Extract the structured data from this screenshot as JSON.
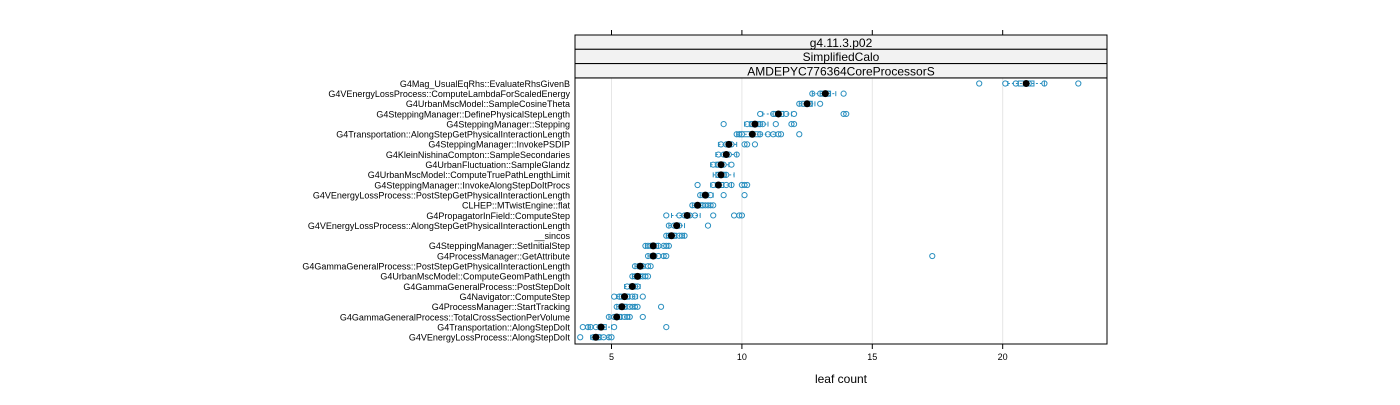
{
  "chart_data": {
    "type": "scatter",
    "strips": [
      "g4.11.3.p02",
      "SimplifiedCalo",
      "AMDEPYC776364CoreProcessorS"
    ],
    "xlabel": "leaf count",
    "ylabel": "",
    "xlim": [
      3.6,
      24.0
    ],
    "xticks": [
      5,
      10,
      15,
      20
    ],
    "grid": true,
    "colors": {
      "point": "#2a8fbf",
      "median": "#000000",
      "whisker": "#2a8fbf",
      "strip_fill": "#f2f2f2",
      "grid": "#e6e6e6"
    },
    "categories": [
      "G4Mag_UsualEqRhs::EvaluateRhsGivenB",
      "G4VEnergyLossProcess::ComputeLambdaForScaledEnergy",
      "G4UrbanMscModel::SampleCosineTheta",
      "G4SteppingManager::DefinePhysicalStepLength",
      "G4SteppingManager::Stepping",
      "G4Transportation::AlongStepGetPhysicalInteractionLength",
      "G4SteppingManager::InvokePSDIP",
      "G4KleinNishinaCompton::SampleSecondaries",
      "G4UrbanFluctuation::SampleGlandz",
      "G4UrbanMscModel::ComputeTruePathLengthLimit",
      "G4SteppingManager::InvokeAlongStepDoItProcs",
      "G4VEnergyLossProcess::PostStepGetPhysicalInteractionLength",
      "CLHEP::MTwistEngine::flat",
      "G4PropagatorInField::ComputeStep",
      "G4VEnergyLossProcess::AlongStepGetPhysicalInteractionLength",
      "__sincos",
      "G4SteppingManager::SetInitialStep",
      "G4ProcessManager::GetAttribute",
      "G4GammaGeneralProcess::PostStepGetPhysicalInteractionLength",
      "G4UrbanMscModel::ComputeGeomPathLength",
      "G4GammaGeneralProcess::PostStepDoIt",
      "G4Navigator::ComputeStep",
      "G4ProcessManager::StartTracking",
      "G4GammaGeneralProcess::TotalCrossSectionPerVolume",
      "G4Transportation::AlongStepDoIt",
      "G4VEnergyLossProcess::AlongStepDoIt"
    ],
    "series": [
      {
        "median": 20.9,
        "box": [
          20.6,
          21.2
        ],
        "whisker": [
          20.2,
          21.6
        ],
        "points": [
          19.1,
          20.1,
          20.5,
          21.0,
          21.6,
          22.9
        ]
      },
      {
        "median": 13.2,
        "box": [
          13.0,
          13.4
        ],
        "whisker": [
          12.7,
          13.6
        ],
        "points": [
          12.7,
          13.0,
          13.2,
          13.3,
          13.9
        ]
      },
      {
        "median": 12.5,
        "box": [
          12.3,
          12.7
        ],
        "whisker": [
          12.2,
          12.8
        ],
        "points": [
          12.2,
          12.5,
          12.6,
          13.0
        ]
      },
      {
        "median": 11.4,
        "box": [
          11.2,
          11.6
        ],
        "whisker": [
          10.8,
          11.9
        ],
        "points": [
          10.7,
          11.2,
          11.4,
          11.7,
          12.0,
          13.9,
          14.0
        ]
      },
      {
        "median": 10.5,
        "box": [
          10.3,
          10.7
        ],
        "whisker": [
          10.1,
          11.0
        ],
        "points": [
          9.3,
          10.2,
          10.4,
          10.5,
          10.7,
          10.8,
          11.3,
          11.9,
          12.0
        ]
      },
      {
        "median": 10.4,
        "box": [
          9.9,
          10.7
        ],
        "whisker": [
          9.8,
          11.3
        ],
        "points": [
          9.8,
          9.9,
          10.0,
          10.4,
          10.7,
          11.0,
          11.2,
          11.4,
          11.5,
          12.2
        ]
      },
      {
        "median": 9.5,
        "box": [
          9.4,
          9.6
        ],
        "whisker": [
          9.1,
          9.8
        ],
        "points": [
          9.2,
          9.4,
          9.6,
          10.1,
          10.2,
          10.5
        ]
      },
      {
        "median": 9.4,
        "box": [
          9.3,
          9.5
        ],
        "whisker": [
          9.0,
          9.8
        ],
        "points": [
          9.1,
          9.3,
          9.5,
          9.8
        ]
      },
      {
        "median": 9.2,
        "box": [
          9.0,
          9.3
        ],
        "whisker": [
          8.8,
          9.5
        ],
        "points": [
          8.9,
          9.1,
          9.3,
          9.6
        ]
      },
      {
        "median": 9.2,
        "box": [
          9.0,
          9.4
        ],
        "whisker": [
          8.9,
          9.7
        ],
        "points": [
          9.1,
          9.3,
          9.4
        ]
      },
      {
        "median": 9.1,
        "box": [
          9.0,
          9.3
        ],
        "whisker": [
          8.8,
          9.6
        ],
        "points": [
          8.3,
          8.9,
          9.1,
          9.4,
          9.6,
          10.0,
          10.1,
          10.2
        ]
      },
      {
        "median": 8.6,
        "box": [
          8.5,
          8.7
        ],
        "whisker": [
          8.4,
          8.9
        ],
        "points": [
          8.4,
          8.6,
          8.8,
          9.3,
          10.1
        ]
      },
      {
        "median": 8.3,
        "box": [
          8.2,
          8.5
        ],
        "whisker": [
          8.1,
          8.8
        ],
        "points": [
          8.1,
          8.3,
          8.5,
          8.6,
          8.7,
          8.8,
          8.9
        ]
      },
      {
        "median": 7.9,
        "box": [
          7.8,
          8.0
        ],
        "whisker": [
          7.3,
          8.4
        ],
        "points": [
          7.1,
          7.6,
          7.8,
          8.0,
          8.2,
          8.9,
          9.7,
          9.9,
          10.0
        ]
      },
      {
        "median": 7.5,
        "box": [
          7.4,
          7.6
        ],
        "whisker": [
          7.2,
          7.8
        ],
        "points": [
          7.2,
          7.4,
          7.6,
          8.7
        ]
      },
      {
        "median": 7.3,
        "box": [
          7.2,
          7.5
        ],
        "whisker": [
          7.1,
          7.8
        ],
        "points": [
          7.1,
          7.2,
          7.4,
          7.6,
          7.7,
          7.8
        ]
      },
      {
        "median": 6.6,
        "box": [
          6.5,
          6.8
        ],
        "whisker": [
          6.3,
          7.2
        ],
        "points": [
          6.3,
          6.4,
          6.5,
          6.6,
          6.8,
          7.0,
          7.1,
          7.2
        ]
      },
      {
        "median": 6.6,
        "box": [
          6.5,
          6.7
        ],
        "whisker": [
          6.4,
          7.0
        ],
        "points": [
          6.4,
          6.6,
          6.8,
          7.0,
          7.1,
          17.3
        ]
      },
      {
        "median": 6.1,
        "box": [
          6.0,
          6.2
        ],
        "whisker": [
          5.9,
          6.3
        ],
        "points": [
          5.9,
          6.1,
          6.2,
          6.4,
          6.5
        ]
      },
      {
        "median": 6.0,
        "box": [
          5.9,
          6.1
        ],
        "whisker": [
          5.8,
          6.3
        ],
        "points": [
          5.8,
          5.9,
          6.1,
          6.2,
          6.3,
          6.4
        ]
      },
      {
        "median": 5.8,
        "box": [
          5.7,
          5.9
        ],
        "whisker": [
          5.5,
          6.1
        ],
        "points": [
          5.6,
          5.8,
          5.9,
          6.0
        ]
      },
      {
        "median": 5.5,
        "box": [
          5.3,
          5.7
        ],
        "whisker": [
          5.2,
          6.0
        ],
        "points": [
          5.1,
          5.3,
          5.6,
          5.8,
          5.9,
          6.2
        ]
      },
      {
        "median": 5.4,
        "box": [
          5.3,
          5.6
        ],
        "whisker": [
          5.2,
          5.9
        ],
        "points": [
          5.2,
          5.5,
          5.7,
          5.8,
          5.9,
          6.0,
          6.9
        ]
      },
      {
        "median": 5.2,
        "box": [
          5.1,
          5.4
        ],
        "whisker": [
          4.9,
          5.7
        ],
        "points": [
          4.9,
          5.1,
          5.3,
          5.5,
          5.6,
          5.7,
          6.2
        ]
      },
      {
        "median": 4.6,
        "box": [
          4.5,
          4.8
        ],
        "whisker": [
          4.1,
          5.0
        ],
        "points": [
          3.9,
          4.1,
          4.2,
          4.4,
          4.6,
          5.1,
          7.1
        ]
      },
      {
        "median": 4.4,
        "box": [
          4.3,
          4.6
        ],
        "whisker": [
          4.2,
          4.9
        ],
        "points": [
          3.8,
          4.3,
          4.5,
          4.7,
          4.9,
          5.0
        ]
      }
    ]
  }
}
